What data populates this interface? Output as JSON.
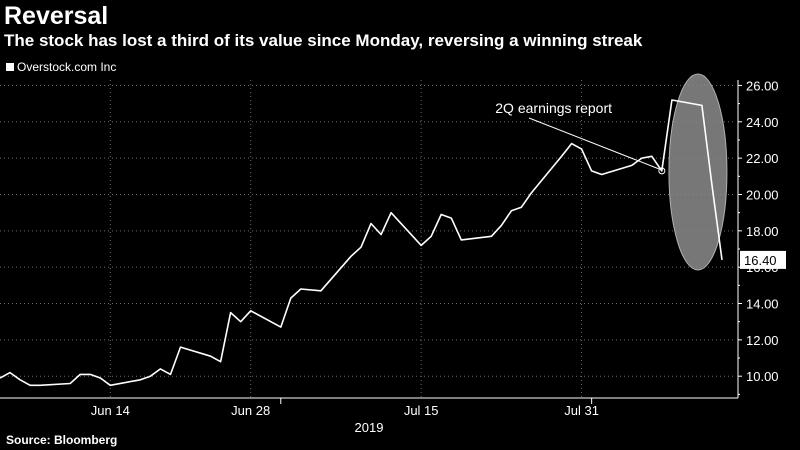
{
  "header": {
    "title": "Reversal",
    "subtitle": "The stock has lost a third of its value since Monday, reversing a winning streak"
  },
  "footer": {
    "source": "Source: Bloomberg"
  },
  "colors": {
    "background": "#000000",
    "line": "#ffffff",
    "gridline": "#6b6b6b",
    "highlight_ellipse": "#8c8c8c"
  },
  "chart_data": {
    "type": "line",
    "series": [
      {
        "name": "Overstock.com Inc",
        "points": [
          [
            "2019-06-03",
            9.9
          ],
          [
            "2019-06-04",
            10.2
          ],
          [
            "2019-06-05",
            9.8
          ],
          [
            "2019-06-06",
            9.5
          ],
          [
            "2019-06-07",
            9.5
          ],
          [
            "2019-06-10",
            9.6
          ],
          [
            "2019-06-11",
            10.1
          ],
          [
            "2019-06-12",
            10.1
          ],
          [
            "2019-06-13",
            9.9
          ],
          [
            "2019-06-14",
            9.5
          ],
          [
            "2019-06-17",
            9.8
          ],
          [
            "2019-06-18",
            10.0
          ],
          [
            "2019-06-19",
            10.4
          ],
          [
            "2019-06-20",
            10.1
          ],
          [
            "2019-06-21",
            11.6
          ],
          [
            "2019-06-24",
            11.1
          ],
          [
            "2019-06-25",
            10.8
          ],
          [
            "2019-06-26",
            13.5
          ],
          [
            "2019-06-27",
            13.0
          ],
          [
            "2019-06-28",
            13.6
          ],
          [
            "2019-07-01",
            12.7
          ],
          [
            "2019-07-02",
            14.3
          ],
          [
            "2019-07-03",
            14.8
          ],
          [
            "2019-07-05",
            14.7
          ],
          [
            "2019-07-08",
            16.6
          ],
          [
            "2019-07-09",
            17.1
          ],
          [
            "2019-07-10",
            18.4
          ],
          [
            "2019-07-11",
            17.8
          ],
          [
            "2019-07-12",
            19.0
          ],
          [
            "2019-07-15",
            17.2
          ],
          [
            "2019-07-16",
            17.7
          ],
          [
            "2019-07-17",
            18.9
          ],
          [
            "2019-07-18",
            18.7
          ],
          [
            "2019-07-19",
            17.5
          ],
          [
            "2019-07-22",
            17.7
          ],
          [
            "2019-07-23",
            18.3
          ],
          [
            "2019-07-24",
            19.1
          ],
          [
            "2019-07-25",
            19.3
          ],
          [
            "2019-07-26",
            20.1
          ],
          [
            "2019-07-29",
            22.1
          ],
          [
            "2019-07-30",
            22.8
          ],
          [
            "2019-07-31",
            22.5
          ],
          [
            "2019-08-01",
            21.3
          ],
          [
            "2019-08-02",
            21.1
          ],
          [
            "2019-08-05",
            21.6
          ],
          [
            "2019-08-06",
            22.0
          ],
          [
            "2019-08-07",
            22.1
          ],
          [
            "2019-08-08",
            21.3
          ],
          [
            "2019-08-09",
            25.2
          ],
          [
            "2019-08-12",
            24.9
          ],
          [
            "2019-08-13",
            20.5
          ],
          [
            "2019-08-14",
            16.4
          ]
        ]
      }
    ],
    "x_ticks": [
      {
        "date": "2019-06-14",
        "label": "Jun 14"
      },
      {
        "date": "2019-06-28",
        "label": "Jun 28"
      },
      {
        "date": "2019-07-15",
        "label": "Jul 15"
      },
      {
        "date": "2019-07-31",
        "label": "Jul 31"
      }
    ],
    "year_label": "2019",
    "x_range": [
      "2019-06-03",
      "2019-08-14"
    ],
    "y_ticks": [
      10,
      12,
      14,
      16,
      18,
      20,
      22,
      24,
      26
    ],
    "y_tick_labels": [
      "10.00",
      "12.00",
      "14.00",
      "16.00",
      "18.00",
      "20.00",
      "22.00",
      "24.00",
      "26.00"
    ],
    "ylim": [
      8.8,
      26.3
    ],
    "y_axis_side": "right",
    "grid": "vertical dotted at month/mid-month ticks, horizontal dotted at y ticks",
    "last_value": 16.4,
    "last_value_label": "16.40",
    "annotation": {
      "text": "2Q earnings report",
      "date": "2019-08-08",
      "value": 21.3
    },
    "highlight": "gray ellipse around the Aug 9–Aug 14 reversal"
  }
}
